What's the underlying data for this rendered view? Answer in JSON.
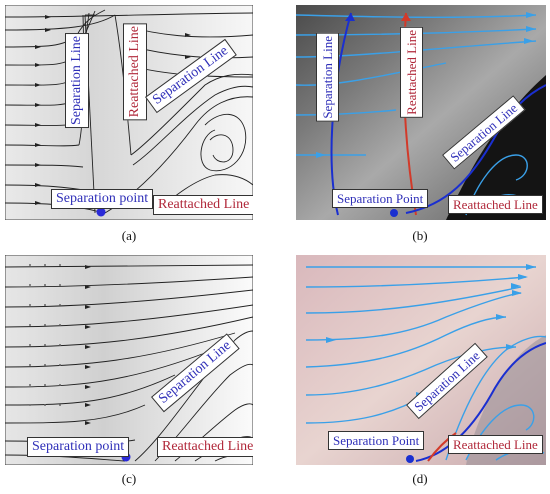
{
  "panels": {
    "a": {
      "caption": "(a)",
      "labels": {
        "separation_line_vertical": "Separation Line",
        "reattached_line_vertical": "Reattached Line",
        "separation_line_diagonal": "Separation Line",
        "separation_point": "Separation point",
        "reattached_line": "Reattached Line"
      }
    },
    "b": {
      "caption": "(b)",
      "labels": {
        "separation_line_vertical": "Separation Line",
        "reattached_line_vertical": "Reattached Line",
        "separation_line_diagonal": "Separation Line",
        "separation_point": "Separation Point",
        "reattached_line": "Reattached Line"
      }
    },
    "c": {
      "caption": "(c)",
      "labels": {
        "separation_line_diagonal": "Separation Line",
        "separation_point": "Separation point",
        "reattached_line": "Reattached Line"
      }
    },
    "d": {
      "caption": "(d)",
      "labels": {
        "separation_line_diagonal": "Separation Line",
        "separation_point": "Separation Point",
        "reattached_line": "Reattached Line"
      }
    }
  },
  "colors": {
    "label_blue": "#2f2fb8",
    "label_red": "#b0283a",
    "flow_blue": "#3aa0e8",
    "line_dark_blue": "#1a2fd0",
    "line_red": "#d23a2a"
  }
}
